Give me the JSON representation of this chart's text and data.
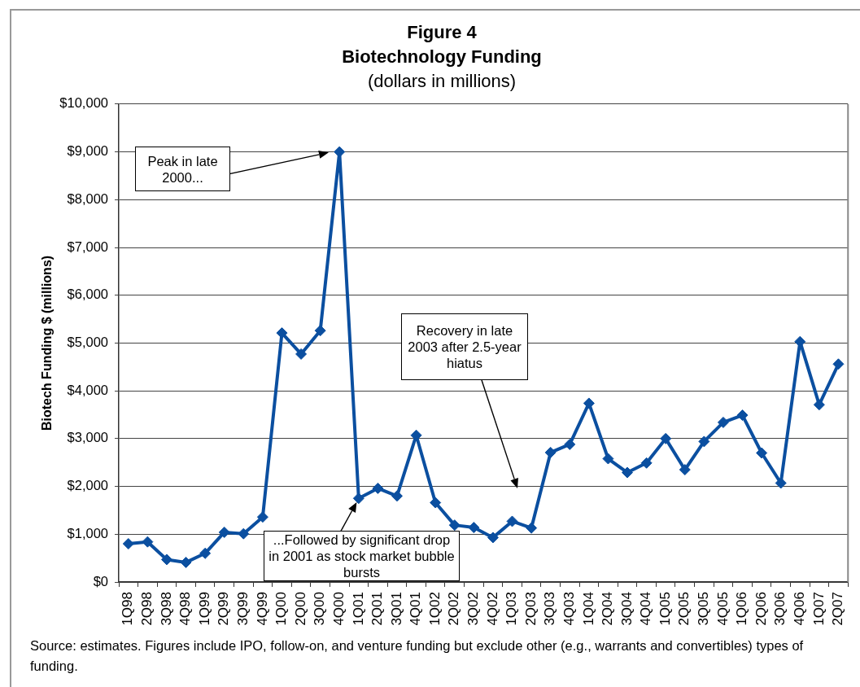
{
  "chart_data": {
    "type": "line",
    "title": "Figure 4\nBiotechnology Funding",
    "subtitle": "(dollars in millions)",
    "ylabel": "Biotech Funding $ (millions)",
    "categories": [
      "1Q98",
      "2Q98",
      "3Q98",
      "4Q98",
      "1Q99",
      "2Q99",
      "3Q99",
      "4Q99",
      "1Q00",
      "2Q00",
      "3Q00",
      "4Q00",
      "1Q01",
      "2Q01",
      "3Q01",
      "4Q01",
      "1Q02",
      "2Q02",
      "3Q02",
      "4Q02",
      "1Q03",
      "2Q03",
      "3Q03",
      "4Q03",
      "1Q04",
      "2Q04",
      "3Q04",
      "4Q04",
      "1Q05",
      "2Q05",
      "3Q05",
      "4Q05",
      "1Q06",
      "2Q06",
      "3Q06",
      "4Q06",
      "1Q07",
      "2Q07"
    ],
    "series": [
      {
        "color": "#0b4fa0",
        "values": [
          800,
          840,
          470,
          410,
          600,
          1040,
          1010,
          1360,
          5210,
          4770,
          5260,
          9000,
          1750,
          1960,
          1800,
          3070,
          1660,
          1190,
          1140,
          930,
          1270,
          1130,
          2710,
          2880,
          3740,
          2580,
          2290,
          2490,
          3000,
          2350,
          2940,
          3340,
          3490,
          2700,
          2070,
          5030,
          3710,
          4560
        ]
      }
    ],
    "ylim": [
      0,
      10000
    ],
    "yticks": [
      {
        "value": 0,
        "label": "$0"
      },
      {
        "value": 1000,
        "label": "$1,000"
      },
      {
        "value": 2000,
        "label": "$2,000"
      },
      {
        "value": 3000,
        "label": "$3,000"
      },
      {
        "value": 4000,
        "label": "$4,000"
      },
      {
        "value": 5000,
        "label": "$5,000"
      },
      {
        "value": 6000,
        "label": "$6,000"
      },
      {
        "value": 7000,
        "label": "$7,000"
      },
      {
        "value": 8000,
        "label": "$8,000"
      },
      {
        "value": 9000,
        "label": "$9,000"
      },
      {
        "value": 10000,
        "label": "$10,000"
      }
    ],
    "grid": "y",
    "marker": "diamond",
    "line_style": "solid",
    "legend": false,
    "annotations": [
      "Peak in late 2000...",
      {
        "text": "...Followed by significant drop in 2001 as stock market bubble bursts",
        "x": "1Q01",
        "y": 1750
      },
      "Recovery in late 2003 after 2.5-year hiatus",
      "Source: estimates. Figures include IPO, follow-on, and venture funding but exclude other (e.g., warrants and convertibles) types of funding."
    ]
  }
}
